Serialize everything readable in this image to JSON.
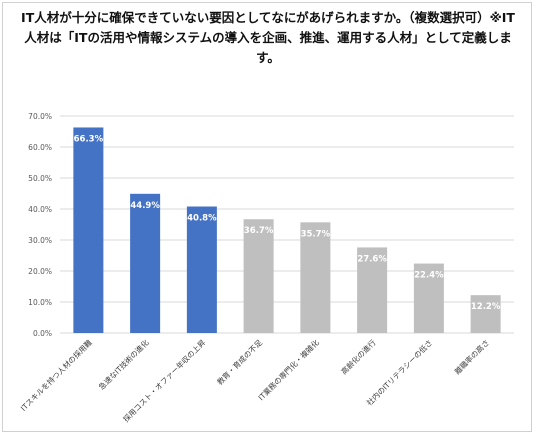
{
  "chart_data": {
    "type": "bar",
    "title": "IT人材が十分に確保できていない要因としてなにがあげられますか。（複数選択可）※IT人材は「ITの活用や情報システムの導入を企画、推進、運用する人材」として定義します。",
    "categories": [
      "ITスキルを持つ人材の採用難",
      "急速なIT技術の進化",
      "採用コスト・オファー年収の上昇",
      "教育・育成の不足",
      "IT業務の専門化・複雑化",
      "高齢化の進行",
      "社内のITリテラシーの低さ",
      "離職率の高さ"
    ],
    "values": [
      66.3,
      44.9,
      40.8,
      36.7,
      35.7,
      27.6,
      22.4,
      12.2
    ],
    "value_labels": [
      "66.3%",
      "44.9%",
      "40.8%",
      "36.7%",
      "35.7%",
      "27.6%",
      "22.4%",
      "12.2%"
    ],
    "ticks": [
      "0.0%",
      "10.0%",
      "20.0%",
      "30.0%",
      "40.0%",
      "50.0%",
      "60.0%",
      "70.0%"
    ],
    "ylim": [
      0,
      70
    ],
    "grid": true,
    "colors": {
      "highlight": "#4472c4",
      "normal": "#bfbfbf"
    },
    "highlight_count": 3
  }
}
